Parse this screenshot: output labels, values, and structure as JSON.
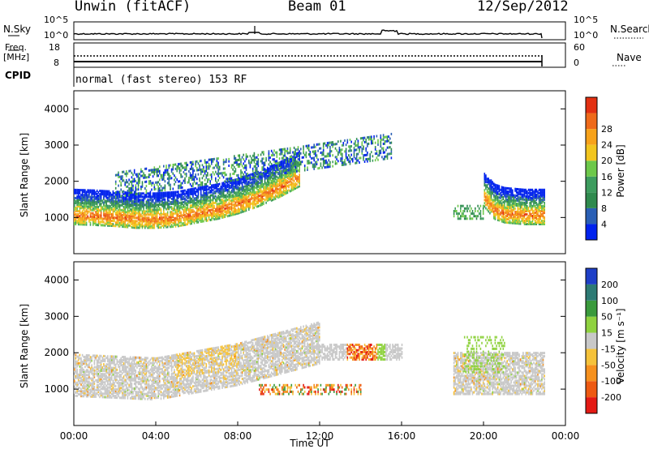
{
  "header": {
    "station": "Unwin (fitACF)",
    "beam": "Beam 01",
    "date": "12/Sep/2012"
  },
  "noise_panel": {
    "left_label": "N.Sky",
    "right_label": "N.Search",
    "left_ticks": [
      "10^5",
      "10^0"
    ],
    "right_ticks": [
      "10^5",
      "10^0"
    ]
  },
  "freq_panel": {
    "left_label_1": "Freq.",
    "left_label_2": "[MHz]",
    "right_label": "Nave",
    "left_ticks": [
      "18",
      "8"
    ],
    "right_ticks": [
      "60",
      "0"
    ]
  },
  "cpid": {
    "label": "CPID",
    "text": "normal (fast stereo) 153 RF"
  },
  "chart_data": [
    {
      "type": "heatmap",
      "title": "Power",
      "ylabel": "Slant Range [km]",
      "xlabel": "",
      "ylim": [
        0,
        4500
      ],
      "yticks": [
        1000,
        2000,
        3000,
        4000
      ],
      "xlim_hours": [
        0,
        24
      ],
      "colorbar": {
        "label": "Power [dB]",
        "range": [
          0,
          32
        ],
        "tick_values": [
          4,
          8,
          12,
          16,
          20,
          24,
          28
        ],
        "tick_labels": [
          "4",
          "8",
          "12",
          "16",
          "20",
          "24",
          "28"
        ],
        "colors": [
          "#0022ee",
          "#2a5fb5",
          "#2f8a4e",
          "#3d9c5e",
          "#6dc84a",
          "#f2c51e",
          "#f7a21a",
          "#ef6a1a",
          "#e23012"
        ]
      },
      "series": [
        {
          "t": [
            0,
            1,
            2,
            3,
            4,
            5,
            6,
            7,
            8,
            9,
            10,
            11
          ],
          "range": [
            1100,
            1080,
            1050,
            1000,
            1000,
            1040,
            1150,
            1250,
            1400,
            1600,
            1850,
            2150
          ],
          "value": 28
        },
        {
          "t": [
            20.0,
            20.5,
            21,
            22,
            23,
            24
          ],
          "range": [
            1600,
            1250,
            1150,
            1100,
            1100,
            1150
          ],
          "value": 26
        }
      ]
    },
    {
      "type": "heatmap",
      "title": "Velocity",
      "ylabel": "Slant Range [km]",
      "xlabel": "Time UT",
      "ylim": [
        0,
        4500
      ],
      "yticks": [
        1000,
        2000,
        3000,
        4000
      ],
      "xticks": [
        "00:00",
        "04:00",
        "08:00",
        "12:00",
        "16:00",
        "20:00",
        "00:00"
      ],
      "colorbar": {
        "label": "Velocity [m s⁻¹]",
        "tick_labels": [
          "200",
          "100",
          "50",
          "15",
          "-15",
          "-50",
          "-100",
          "-200"
        ],
        "colors": [
          "#1e3fc7",
          "#2d7a74",
          "#3a9a3c",
          "#8fd23f",
          "#c8c8c8",
          "#f5c23a",
          "#f6911e",
          "#ee5a12",
          "#e41a14"
        ]
      },
      "series": [
        {
          "t": [
            0,
            4,
            8,
            12
          ],
          "range": [
            1100,
            1000,
            1400,
            2000
          ],
          "value": 0
        },
        {
          "t": [
            13.5,
            14,
            14.5,
            15
          ],
          "range": [
            1950,
            1950,
            1950,
            1950
          ],
          "value": -80
        }
      ]
    }
  ]
}
